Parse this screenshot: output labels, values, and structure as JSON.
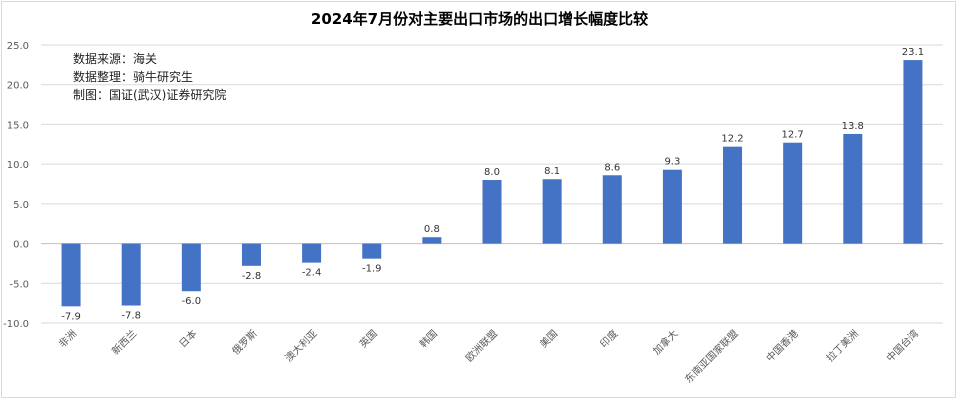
{
  "chart_data": {
    "type": "bar",
    "title": "2024年7月份对主要出口市场的出口增长幅度比较",
    "xlabel": "",
    "ylabel": "",
    "ylim": [
      -10,
      25
    ],
    "yticks": [
      "-10.0",
      "-5.0",
      "0.0",
      "5.0",
      "10.0",
      "15.0",
      "20.0",
      "25.0"
    ],
    "ytick_values": [
      -10,
      -5,
      0,
      5,
      10,
      15,
      20,
      25
    ],
    "grid": true,
    "legend": "none",
    "bar_color": "#4472c4",
    "categories": [
      "非洲",
      "新西兰",
      "日本",
      "俄罗斯",
      "澳大利亚",
      "英国",
      "韩国",
      "欧洲联盟",
      "美国",
      "印度",
      "加拿大",
      "东南亚国家联盟",
      "中国香港",
      "拉丁美洲",
      "中国台湾"
    ],
    "values": [
      -7.9,
      -7.8,
      -6.0,
      -2.8,
      -2.4,
      -1.9,
      0.8,
      8.0,
      8.1,
      8.6,
      9.3,
      12.2,
      12.7,
      13.8,
      23.1
    ],
    "value_labels": [
      "-7.9",
      "-7.8",
      "-6.0",
      "-2.8",
      "-2.4",
      "-1.9",
      "0.8",
      "8.0",
      "8.1",
      "8.6",
      "9.3",
      "12.2",
      "12.7",
      "13.8",
      "23.1"
    ],
    "annotations": [
      "数据来源：海关",
      "数据整理：骑牛研究生",
      "制图：国证(武汉)证券研究院"
    ]
  }
}
